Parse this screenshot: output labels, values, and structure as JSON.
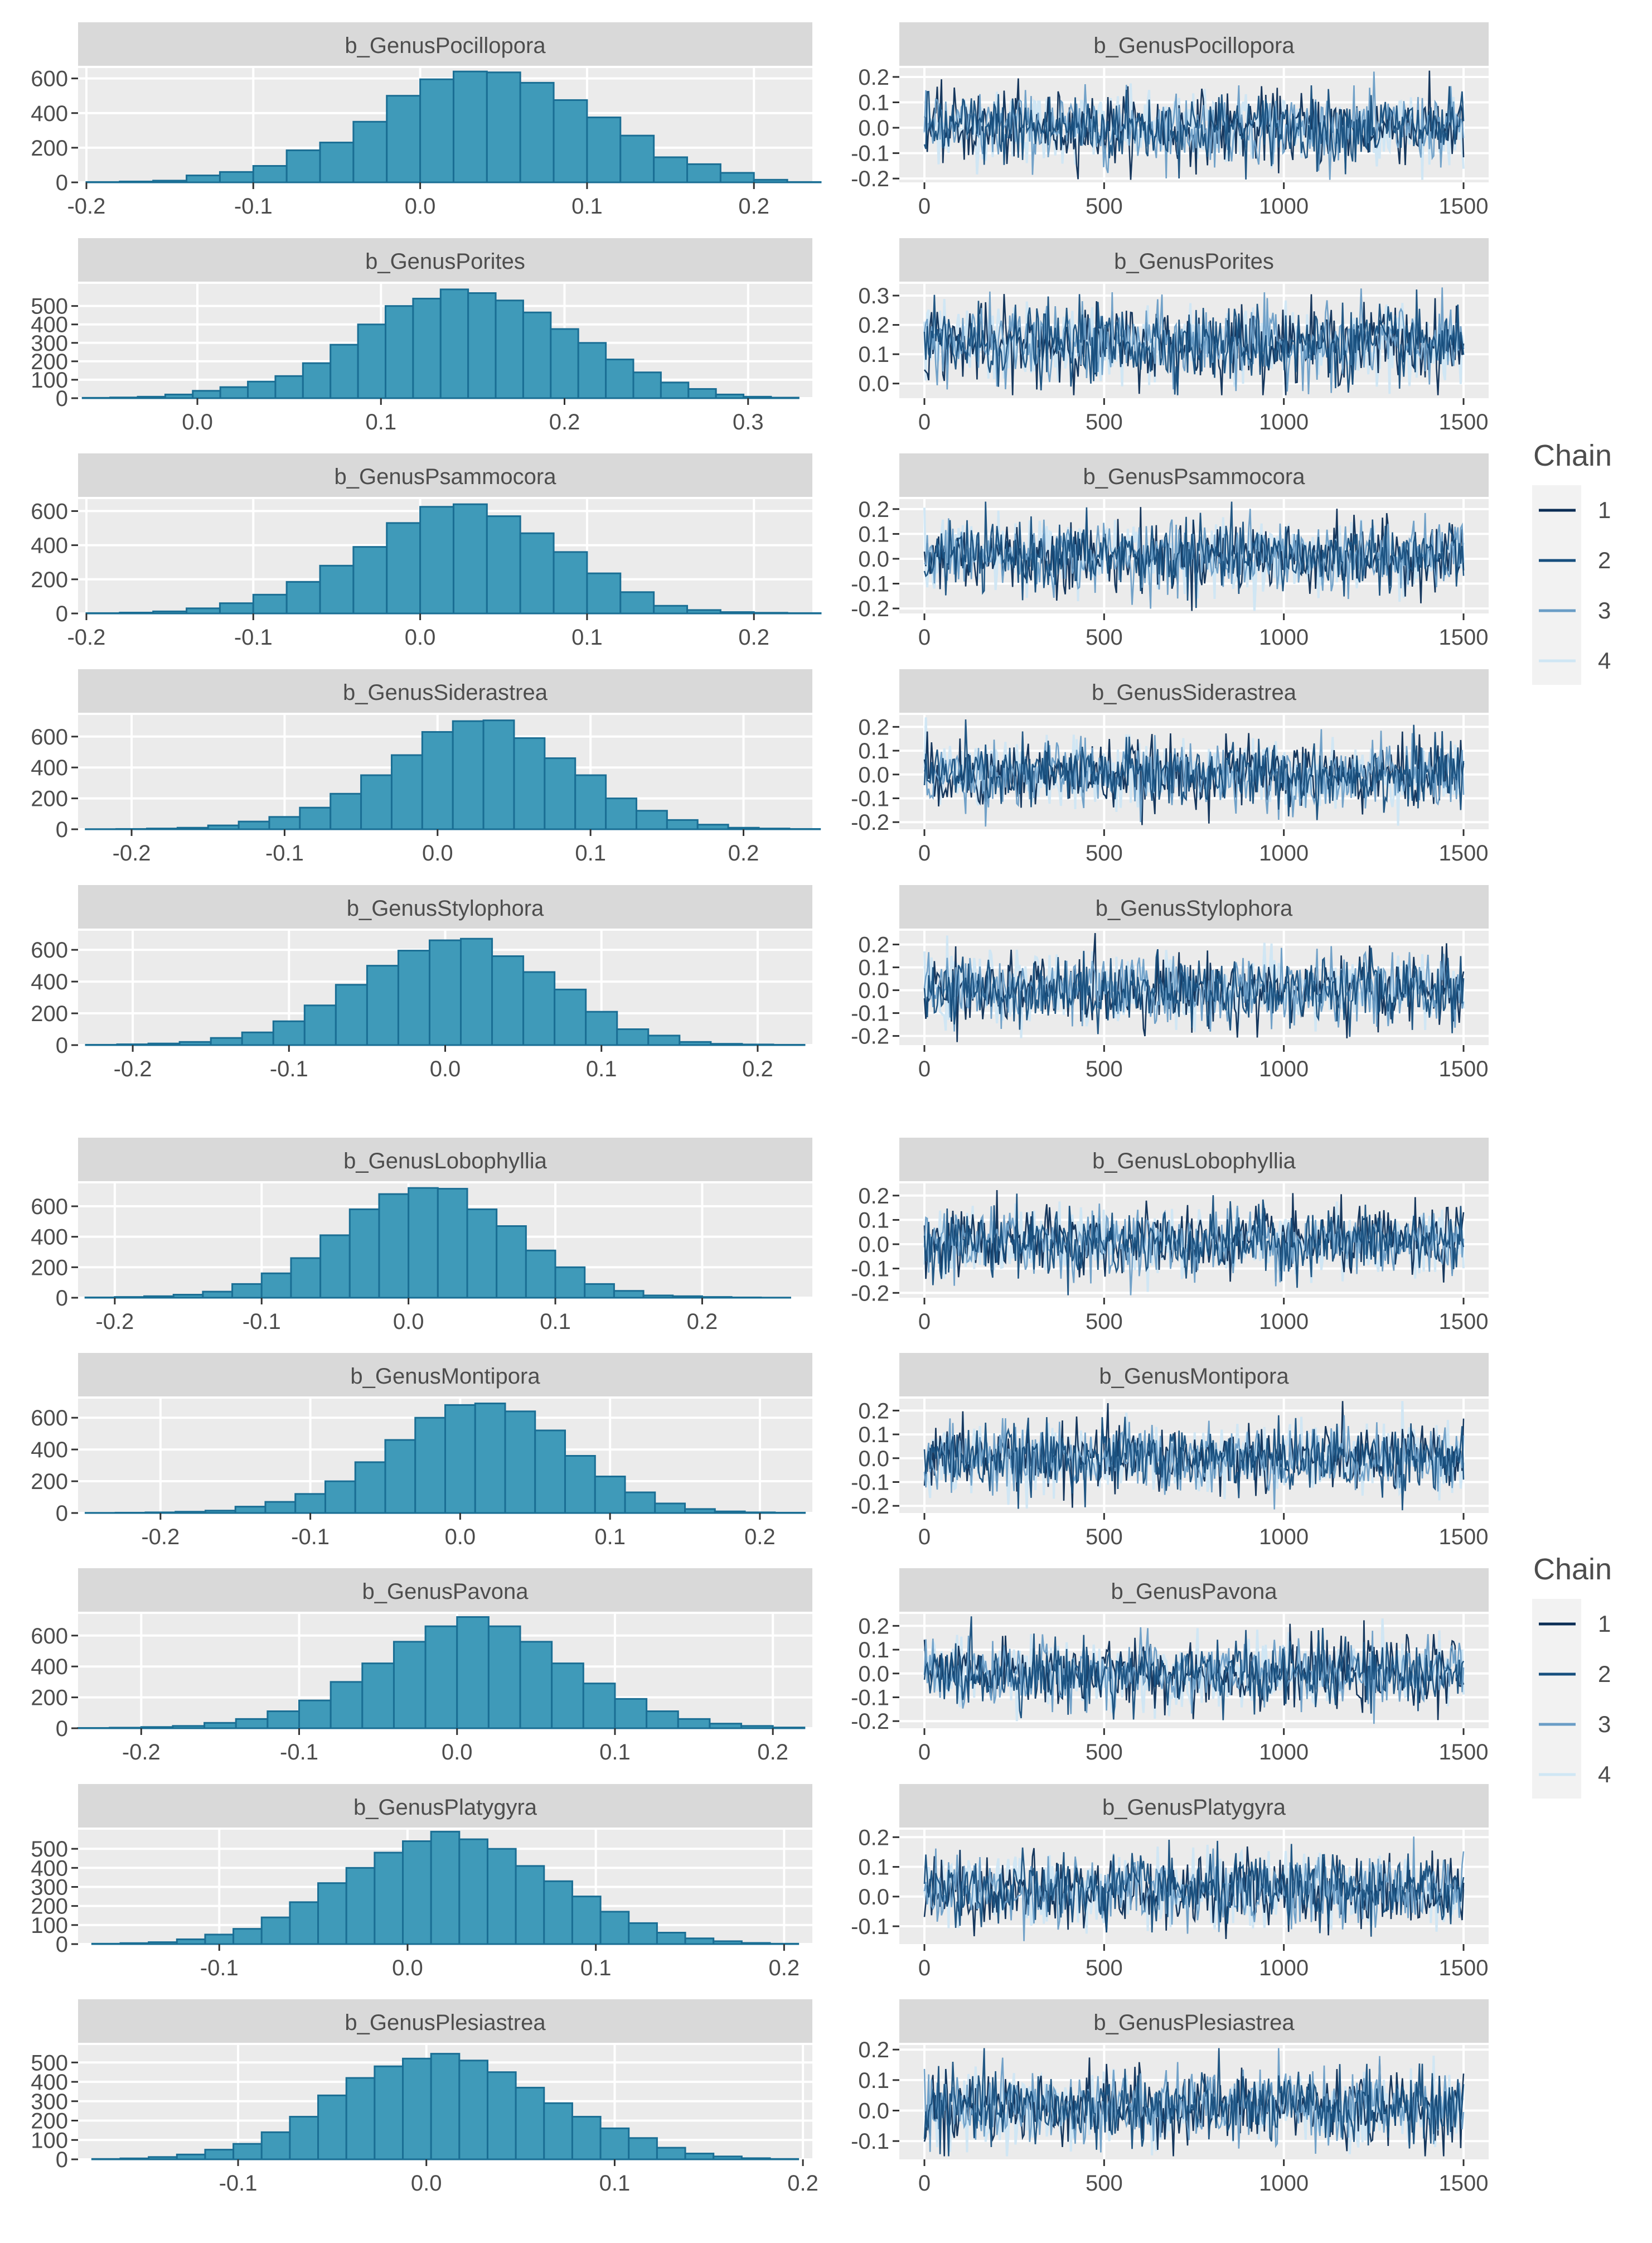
{
  "figure": {
    "chain_legend_title": "Chain",
    "chain_labels": [
      "1",
      "2",
      "3",
      "4"
    ],
    "chain_colors": [
      "#0b2d55",
      "#174f7e",
      "#6a9dc6",
      "#cfe6f4"
    ],
    "hist_fill": "#3f9ab9",
    "hist_stroke": "#1a6e94",
    "panel_bg": "#ebebeb",
    "strip_bg": "#d9d9d9"
  },
  "chart_data": [
    {
      "type": "bar",
      "title": "b_GenusPocillopora",
      "xticks": [
        "-0.2",
        "-0.1",
        "0.0",
        "0.1",
        "0.2"
      ],
      "xtick_values": [
        -0.2,
        -0.1,
        0.0,
        0.1,
        0.2
      ],
      "xlim": [
        -0.205,
        0.235
      ],
      "yticks": [
        "0",
        "200",
        "400",
        "600"
      ],
      "ylim": [
        0,
        660
      ],
      "bin_centers": [
        -0.19,
        -0.17,
        -0.15,
        -0.13,
        -0.11,
        -0.09,
        -0.07,
        -0.05,
        -0.03,
        -0.01,
        0.01,
        0.03,
        0.05,
        0.07,
        0.09,
        0.11,
        0.13,
        0.15,
        0.17,
        0.19,
        0.21,
        0.23
      ],
      "values": [
        2,
        5,
        10,
        40,
        60,
        95,
        185,
        230,
        350,
        500,
        595,
        640,
        635,
        575,
        475,
        375,
        270,
        145,
        105,
        55,
        15,
        2
      ]
    },
    {
      "type": "line",
      "title": "b_GenusPocillopora",
      "x": [
        0,
        1500
      ],
      "xticks": [
        "0",
        "500",
        "1000",
        "1500"
      ],
      "xtick_values": [
        0,
        500,
        1000,
        1500
      ],
      "yticks": [
        "-0.2",
        "-0.1",
        "0.0",
        "0.1",
        "0.2"
      ],
      "ytick_values": [
        -0.2,
        -0.1,
        0.0,
        0.1,
        0.2
      ],
      "ylim": [
        -0.215,
        0.235
      ],
      "series_mean": 0.0,
      "series_sd": 0.07,
      "series": [
        "1",
        "2",
        "3",
        "4"
      ]
    },
    {
      "type": "bar",
      "title": "b_GenusPorites",
      "xticks": [
        "0.0",
        "0.1",
        "0.2",
        "0.3"
      ],
      "xtick_values": [
        0.0,
        0.1,
        0.2,
        0.3
      ],
      "xlim": [
        -0.065,
        0.335
      ],
      "yticks": [
        "0",
        "100",
        "200",
        "300",
        "400",
        "500"
      ],
      "ylim": [
        0,
        620
      ],
      "bin_centers": [
        -0.055,
        -0.04,
        -0.025,
        -0.01,
        0.005,
        0.02,
        0.035,
        0.05,
        0.065,
        0.08,
        0.095,
        0.11,
        0.125,
        0.14,
        0.155,
        0.17,
        0.185,
        0.2,
        0.215,
        0.23,
        0.245,
        0.26,
        0.275,
        0.29,
        0.305,
        0.32
      ],
      "values": [
        2,
        4,
        8,
        20,
        40,
        60,
        90,
        120,
        190,
        290,
        400,
        500,
        540,
        590,
        570,
        530,
        465,
        375,
        300,
        210,
        140,
        85,
        50,
        20,
        8,
        3
      ]
    },
    {
      "type": "line",
      "title": "b_GenusPorites",
      "x": [
        0,
        1500
      ],
      "xticks": [
        "0",
        "500",
        "1000",
        "1500"
      ],
      "xtick_values": [
        0,
        500,
        1000,
        1500
      ],
      "yticks": [
        "0.0",
        "0.1",
        "0.2",
        "0.3"
      ],
      "ytick_values": [
        0.0,
        0.1,
        0.2,
        0.3
      ],
      "ylim": [
        -0.05,
        0.34
      ],
      "series_mean": 0.135,
      "series_sd": 0.065,
      "series": [
        "1",
        "2",
        "3",
        "4"
      ]
    },
    {
      "type": "bar",
      "title": "b_GenusPsammocora",
      "xticks": [
        "-0.2",
        "-0.1",
        "0.0",
        "0.1",
        "0.2"
      ],
      "xtick_values": [
        -0.2,
        -0.1,
        0.0,
        0.1,
        0.2
      ],
      "xlim": [
        -0.205,
        0.235
      ],
      "yticks": [
        "0",
        "200",
        "400",
        "600"
      ],
      "ylim": [
        0,
        670
      ],
      "bin_centers": [
        -0.19,
        -0.17,
        -0.15,
        -0.13,
        -0.11,
        -0.09,
        -0.07,
        -0.05,
        -0.03,
        -0.01,
        0.01,
        0.03,
        0.05,
        0.07,
        0.09,
        0.11,
        0.13,
        0.15,
        0.17,
        0.19,
        0.21,
        0.23
      ],
      "values": [
        2,
        5,
        12,
        30,
        60,
        110,
        185,
        280,
        390,
        530,
        625,
        640,
        570,
        470,
        360,
        235,
        125,
        45,
        20,
        8,
        4,
        2
      ]
    },
    {
      "type": "line",
      "title": "b_GenusPsammocora",
      "x": [
        0,
        1500
      ],
      "xticks": [
        "0",
        "500",
        "1000",
        "1500"
      ],
      "xtick_values": [
        0,
        500,
        1000,
        1500
      ],
      "yticks": [
        "-0.2",
        "-0.1",
        "0.0",
        "0.1",
        "0.2"
      ],
      "ytick_values": [
        -0.2,
        -0.1,
        0.0,
        0.1,
        0.2
      ],
      "ylim": [
        -0.22,
        0.24
      ],
      "series_mean": 0.01,
      "series_sd": 0.07,
      "series": [
        "1",
        "2",
        "3",
        "4"
      ]
    },
    {
      "type": "bar",
      "title": "b_GenusSiderastrea",
      "xticks": [
        "-0.2",
        "-0.1",
        "0.0",
        "0.1",
        "0.2"
      ],
      "xtick_values": [
        -0.2,
        -0.1,
        0.0,
        0.1,
        0.2
      ],
      "xlim": [
        -0.235,
        0.245
      ],
      "yticks": [
        "0",
        "200",
        "400",
        "600"
      ],
      "ylim": [
        0,
        740
      ],
      "bin_centers": [
        -0.22,
        -0.2,
        -0.18,
        -0.16,
        -0.14,
        -0.12,
        -0.1,
        -0.08,
        -0.06,
        -0.04,
        -0.02,
        0.0,
        0.02,
        0.04,
        0.06,
        0.08,
        0.1,
        0.12,
        0.14,
        0.16,
        0.18,
        0.2,
        0.22,
        0.24
      ],
      "values": [
        1,
        2,
        5,
        10,
        25,
        50,
        80,
        140,
        230,
        350,
        480,
        630,
        700,
        705,
        590,
        460,
        350,
        200,
        120,
        60,
        30,
        10,
        5,
        2
      ]
    },
    {
      "type": "line",
      "title": "b_GenusSiderastrea",
      "x": [
        0,
        1500
      ],
      "xticks": [
        "0",
        "500",
        "1000",
        "1500"
      ],
      "xtick_values": [
        0,
        500,
        1000,
        1500
      ],
      "yticks": [
        "-0.2",
        "-0.1",
        "0.0",
        "0.1",
        "0.2"
      ],
      "ytick_values": [
        -0.2,
        -0.1,
        0.0,
        0.1,
        0.2
      ],
      "ylim": [
        -0.23,
        0.25
      ],
      "series_mean": 0.0,
      "series_sd": 0.07,
      "series": [
        "1",
        "2",
        "3",
        "4"
      ]
    },
    {
      "type": "bar",
      "title": "b_GenusStylophora",
      "xticks": [
        "-0.2",
        "-0.1",
        "0.0",
        "0.1",
        "0.2"
      ],
      "xtick_values": [
        -0.2,
        -0.1,
        0.0,
        0.1,
        0.2
      ],
      "xlim": [
        -0.235,
        0.235
      ],
      "yticks": [
        "0",
        "200",
        "400",
        "600"
      ],
      "ylim": [
        0,
        720
      ],
      "bin_centers": [
        -0.22,
        -0.2,
        -0.18,
        -0.16,
        -0.14,
        -0.12,
        -0.1,
        -0.08,
        -0.06,
        -0.04,
        -0.02,
        0.0,
        0.02,
        0.04,
        0.06,
        0.08,
        0.1,
        0.12,
        0.14,
        0.16,
        0.18,
        0.2,
        0.22
      ],
      "values": [
        2,
        5,
        10,
        20,
        45,
        80,
        150,
        250,
        380,
        500,
        595,
        660,
        670,
        560,
        460,
        350,
        210,
        100,
        60,
        20,
        8,
        4,
        2
      ]
    },
    {
      "type": "line",
      "title": "b_GenusStylophora",
      "x": [
        0,
        1500
      ],
      "xticks": [
        "0",
        "500",
        "1000",
        "1500"
      ],
      "xtick_values": [
        0,
        500,
        1000,
        1500
      ],
      "yticks": [
        "-0.2",
        "-0.1",
        "0.0",
        "0.1",
        "0.2"
      ],
      "ytick_values": [
        -0.2,
        -0.1,
        0.0,
        0.1,
        0.2
      ],
      "ylim": [
        -0.24,
        0.26
      ],
      "series_mean": 0.0,
      "series_sd": 0.075,
      "series": [
        "1",
        "2",
        "3",
        "4"
      ]
    },
    {
      "type": "bar",
      "title": "b_GenusLobophyllia",
      "xticks": [
        "-0.2",
        "-0.1",
        "0.0",
        "0.1",
        "0.2"
      ],
      "xtick_values": [
        -0.2,
        -0.1,
        0.0,
        0.1,
        0.2
      ],
      "xlim": [
        -0.225,
        0.275
      ],
      "yticks": [
        "0",
        "200",
        "400",
        "600"
      ],
      "ylim": [
        0,
        750
      ],
      "bin_centers": [
        -0.21,
        -0.19,
        -0.17,
        -0.15,
        -0.13,
        -0.11,
        -0.09,
        -0.07,
        -0.05,
        -0.03,
        -0.01,
        0.01,
        0.03,
        0.05,
        0.07,
        0.09,
        0.11,
        0.13,
        0.15,
        0.17,
        0.19,
        0.21,
        0.23,
        0.25
      ],
      "values": [
        2,
        5,
        10,
        20,
        40,
        90,
        160,
        260,
        410,
        580,
        680,
        720,
        715,
        580,
        470,
        310,
        200,
        90,
        45,
        15,
        10,
        5,
        2,
        1
      ]
    },
    {
      "type": "line",
      "title": "b_GenusLobophyllia",
      "x": [
        0,
        1500
      ],
      "xticks": [
        "0",
        "500",
        "1000",
        "1500"
      ],
      "xtick_values": [
        0,
        500,
        1000,
        1500
      ],
      "yticks": [
        "-0.2",
        "-0.1",
        "0.0",
        "0.1",
        "0.2"
      ],
      "ytick_values": [
        -0.2,
        -0.1,
        0.0,
        0.1,
        0.2
      ],
      "ylim": [
        -0.22,
        0.25
      ],
      "series_mean": 0.01,
      "series_sd": 0.07,
      "series": [
        "1",
        "2",
        "3",
        "4"
      ]
    },
    {
      "type": "bar",
      "title": "b_GenusMontipora",
      "xticks": [
        "-0.2",
        "-0.1",
        "0.0",
        "0.1",
        "0.2"
      ],
      "xtick_values": [
        -0.2,
        -0.1,
        0.0,
        0.1,
        0.2
      ],
      "xlim": [
        -0.255,
        0.235
      ],
      "yticks": [
        "0",
        "200",
        "400",
        "600"
      ],
      "ylim": [
        0,
        720
      ],
      "bin_centers": [
        -0.24,
        -0.22,
        -0.2,
        -0.18,
        -0.16,
        -0.14,
        -0.12,
        -0.1,
        -0.08,
        -0.06,
        -0.04,
        -0.02,
        0.0,
        0.02,
        0.04,
        0.06,
        0.08,
        0.1,
        0.12,
        0.14,
        0.16,
        0.18,
        0.2,
        0.22
      ],
      "values": [
        1,
        2,
        4,
        8,
        15,
        40,
        70,
        120,
        200,
        320,
        460,
        600,
        680,
        690,
        640,
        520,
        360,
        230,
        130,
        60,
        25,
        10,
        4,
        2
      ]
    },
    {
      "type": "line",
      "title": "b_GenusMontipora",
      "x": [
        0,
        1500
      ],
      "xticks": [
        "0",
        "500",
        "1000",
        "1500"
      ],
      "xtick_values": [
        0,
        500,
        1000,
        1500
      ],
      "yticks": [
        "-0.2",
        "-0.1",
        "0.0",
        "0.1",
        "0.2"
      ],
      "ytick_values": [
        -0.2,
        -0.1,
        0.0,
        0.1,
        0.2
      ],
      "ylim": [
        -0.23,
        0.25
      ],
      "series_mean": 0.0,
      "series_sd": 0.07,
      "series": [
        "1",
        "2",
        "3",
        "4"
      ]
    },
    {
      "type": "bar",
      "title": "b_GenusPavona",
      "xticks": [
        "-0.2",
        "-0.1",
        "0.0",
        "0.1",
        "0.2"
      ],
      "xtick_values": [
        -0.2,
        -0.1,
        0.0,
        0.1,
        0.2
      ],
      "xlim": [
        -0.24,
        0.225
      ],
      "yticks": [
        "0",
        "200",
        "400",
        "600"
      ],
      "ylim": [
        0,
        740
      ],
      "bin_centers": [
        -0.23,
        -0.21,
        -0.19,
        -0.17,
        -0.15,
        -0.13,
        -0.11,
        -0.09,
        -0.07,
        -0.05,
        -0.03,
        -0.01,
        0.01,
        0.03,
        0.05,
        0.07,
        0.09,
        0.11,
        0.13,
        0.15,
        0.17,
        0.19,
        0.21
      ],
      "values": [
        2,
        4,
        8,
        15,
        35,
        60,
        110,
        180,
        300,
        420,
        560,
        660,
        720,
        660,
        560,
        420,
        290,
        190,
        110,
        60,
        30,
        15,
        5
      ]
    },
    {
      "type": "line",
      "title": "b_GenusPavona",
      "x": [
        0,
        1500
      ],
      "xticks": [
        "0",
        "500",
        "1000",
        "1500"
      ],
      "xtick_values": [
        0,
        500,
        1000,
        1500
      ],
      "yticks": [
        "-0.2",
        "-0.1",
        "0.0",
        "0.1",
        "0.2"
      ],
      "ytick_values": [
        -0.2,
        -0.1,
        0.0,
        0.1,
        0.2
      ],
      "ylim": [
        -0.23,
        0.25
      ],
      "series_mean": 0.0,
      "series_sd": 0.07,
      "series": [
        "1",
        "2",
        "3",
        "4"
      ]
    },
    {
      "type": "bar",
      "title": "b_GenusPlatygyra",
      "xticks": [
        "-0.1",
        "0.0",
        "0.1",
        "0.2"
      ],
      "xtick_values": [
        -0.1,
        0.0,
        0.1,
        0.2
      ],
      "xlim": [
        -0.175,
        0.215
      ],
      "yticks": [
        "0",
        "100",
        "200",
        "300",
        "400",
        "500"
      ],
      "ylim": [
        0,
        600
      ],
      "bin_centers": [
        -0.16,
        -0.145,
        -0.13,
        -0.115,
        -0.1,
        -0.085,
        -0.07,
        -0.055,
        -0.04,
        -0.025,
        -0.01,
        0.005,
        0.02,
        0.035,
        0.05,
        0.065,
        0.08,
        0.095,
        0.11,
        0.125,
        0.14,
        0.155,
        0.17,
        0.185,
        0.2
      ],
      "values": [
        2,
        5,
        10,
        25,
        50,
        80,
        140,
        220,
        320,
        400,
        480,
        540,
        590,
        550,
        500,
        410,
        330,
        250,
        170,
        110,
        60,
        30,
        15,
        6,
        2
      ]
    },
    {
      "type": "line",
      "title": "b_GenusPlatygyra",
      "x": [
        0,
        1500
      ],
      "xticks": [
        "0",
        "500",
        "1000",
        "1500"
      ],
      "xtick_values": [
        0,
        500,
        1000,
        1500
      ],
      "yticks": [
        "-0.1",
        "0.0",
        "0.1",
        "0.2"
      ],
      "ytick_values": [
        -0.1,
        0.0,
        0.1,
        0.2
      ],
      "ylim": [
        -0.16,
        0.225
      ],
      "series_mean": 0.02,
      "series_sd": 0.06,
      "series": [
        "1",
        "2",
        "3",
        "4"
      ]
    },
    {
      "type": "bar",
      "title": "b_GenusPlesiastrea",
      "xticks": [
        "-0.1",
        "0.0",
        "0.1",
        "0.2"
      ],
      "xtick_values": [
        -0.1,
        0.0,
        0.1,
        0.2
      ],
      "xlim": [
        -0.185,
        0.205
      ],
      "yticks": [
        "0",
        "100",
        "200",
        "300",
        "400",
        "500"
      ],
      "ylim": [
        0,
        590
      ],
      "bin_centers": [
        -0.17,
        -0.155,
        -0.14,
        -0.125,
        -0.11,
        -0.095,
        -0.08,
        -0.065,
        -0.05,
        -0.035,
        -0.02,
        -0.005,
        0.01,
        0.025,
        0.04,
        0.055,
        0.07,
        0.085,
        0.1,
        0.115,
        0.13,
        0.145,
        0.16,
        0.175,
        0.19
      ],
      "values": [
        2,
        5,
        12,
        25,
        50,
        80,
        140,
        220,
        330,
        420,
        480,
        520,
        545,
        510,
        450,
        370,
        290,
        220,
        160,
        110,
        60,
        30,
        15,
        6,
        2
      ]
    },
    {
      "type": "line",
      "title": "b_GenusPlesiastrea",
      "x": [
        0,
        1500
      ],
      "xticks": [
        "0",
        "500",
        "1000",
        "1500"
      ],
      "xtick_values": [
        0,
        500,
        1000,
        1500
      ],
      "yticks": [
        "-0.1",
        "0.0",
        "0.1",
        "0.2"
      ],
      "ytick_values": [
        -0.1,
        0.0,
        0.1,
        0.2
      ],
      "ylim": [
        -0.16,
        0.215
      ],
      "series_mean": 0.01,
      "series_sd": 0.06,
      "series": [
        "1",
        "2",
        "3",
        "4"
      ]
    }
  ]
}
